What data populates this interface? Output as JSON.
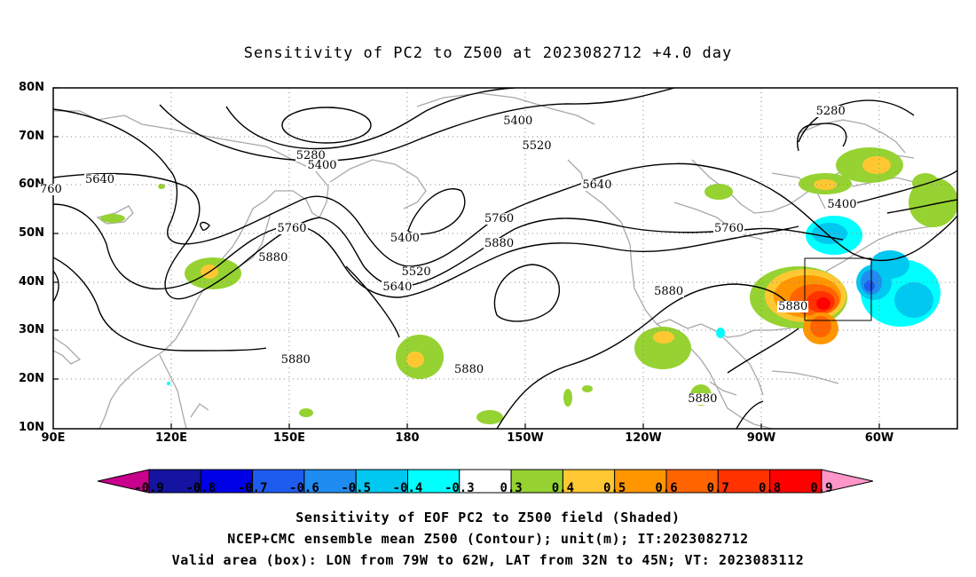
{
  "title": "Sensitivity of PC2 to Z500 at 2023082712 +4.0 day",
  "map": {
    "lat_labels": [
      "80N",
      "70N",
      "60N",
      "50N",
      "40N",
      "30N",
      "20N",
      "10N"
    ],
    "lon_labels": [
      "90E",
      "120E",
      "150E",
      "180",
      "150W",
      "120W",
      "90W",
      "60W"
    ],
    "contour_labels": [
      {
        "text": "5280",
        "lon": 158,
        "lat": 66
      },
      {
        "text": "5400",
        "lon": 161,
        "lat": 64
      },
      {
        "text": "5640",
        "lon": 102,
        "lat": 61
      },
      {
        "text": "760",
        "lon": 90,
        "lat": 59
      },
      {
        "text": "5760",
        "lon": 153,
        "lat": 51
      },
      {
        "text": "5880",
        "lon": 148,
        "lat": 45
      },
      {
        "text": "5400",
        "lon": 183,
        "lat": 49
      },
      {
        "text": "5520",
        "lon": 186,
        "lat": 42
      },
      {
        "text": "5640",
        "lon": 181,
        "lat": 39
      },
      {
        "text": "5760",
        "lon": 208,
        "lat": 53
      },
      {
        "text": "5880",
        "lon": 208,
        "lat": 48
      },
      {
        "text": "5400",
        "lon": 213,
        "lat": 73
      },
      {
        "text": "5520",
        "lon": 218,
        "lat": 68
      },
      {
        "text": "5640",
        "lon": 234,
        "lat": 60
      },
      {
        "text": "5880",
        "lon": 154,
        "lat": 24
      },
      {
        "text": "5880",
        "lon": 200,
        "lat": 22
      },
      {
        "text": "5880",
        "lon": 253,
        "lat": 38
      },
      {
        "text": "5760",
        "lon": 269,
        "lat": 51
      },
      {
        "text": "5280",
        "lon": 296,
        "lat": 75
      },
      {
        "text": "5400",
        "lon": 299,
        "lat": 56
      },
      {
        "text": "5880",
        "lon": 286,
        "lat": 35
      },
      {
        "text": "5880",
        "lon": 262,
        "lat": 16
      }
    ],
    "valid_box": {
      "lon_w": "79W",
      "lon_e": "62W",
      "lat_s": "32N",
      "lat_n": "45N"
    }
  },
  "colorbar": {
    "labels": [
      "-0.9",
      "-0.8",
      "-0.7",
      "-0.6",
      "-0.5",
      "-0.4",
      "-0.3",
      "0.3",
      "0.4",
      "0.5",
      "0.6",
      "0.7",
      "0.8",
      "0.9"
    ],
    "colors": [
      "#1414a0",
      "#0000e6",
      "#1e5cf0",
      "#1e8cf0",
      "#00c8f0",
      "#00ffff",
      "#ffffff",
      "#96d232",
      "#ffc832",
      "#ff9600",
      "#ff6400",
      "#ff3200",
      "#ff0000"
    ],
    "end_low": "#c8008c",
    "end_high": "#ff96c8"
  },
  "notes": [
    "Sensitivity of EOF PC2 to Z500 field (Shaded)",
    "NCEP+CMC ensemble mean Z500 (Contour); unit(m); IT:2023082712",
    "Valid area (box): LON from 79W to 62W, LAT from 32N to 45N; VT: 2023083112"
  ]
}
